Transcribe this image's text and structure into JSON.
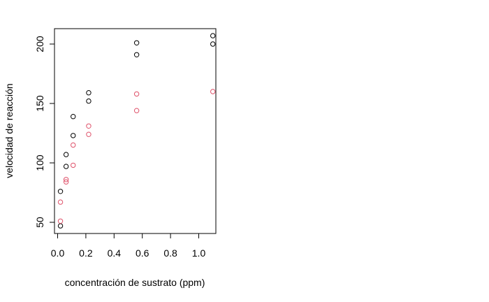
{
  "chart_data": {
    "type": "scatter",
    "title": "",
    "xlabel": "concentración de sustrato (ppm)",
    "ylabel": "velocidad de reacción",
    "xlim": [
      0.0,
      1.1
    ],
    "ylim": [
      45,
      210
    ],
    "x_ticks": [
      "0.0",
      "0.2",
      "0.4",
      "0.6",
      "0.8",
      "1.0"
    ],
    "y_ticks": [
      "50",
      "100",
      "150",
      "200"
    ],
    "grid": false,
    "legend": "none",
    "marker": "open-circle",
    "series": [
      {
        "color": "#000000",
        "x": [
          0.02,
          0.02,
          0.06,
          0.06,
          0.11,
          0.11,
          0.22,
          0.22,
          0.56,
          0.56,
          1.1,
          1.1
        ],
        "y": [
          76,
          47,
          97,
          107,
          123,
          139,
          159,
          152,
          191,
          201,
          207,
          200
        ]
      },
      {
        "color": "#DF536B",
        "x": [
          0.02,
          0.02,
          0.06,
          0.06,
          0.11,
          0.11,
          0.22,
          0.22,
          0.56,
          0.56,
          1.1
        ],
        "y": [
          67,
          51,
          84,
          86,
          98,
          115,
          131,
          124,
          144,
          158,
          160
        ]
      }
    ]
  }
}
